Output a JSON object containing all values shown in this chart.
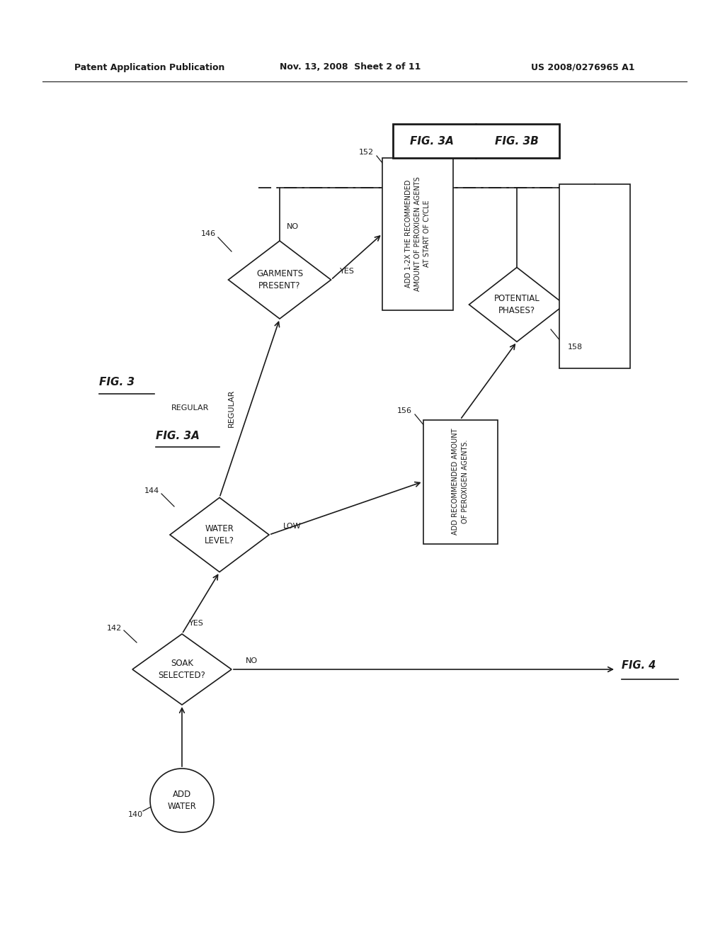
{
  "header_left": "Patent Application Publication",
  "header_mid": "Nov. 13, 2008  Sheet 2 of 11",
  "header_right": "US 2008/0276965 A1",
  "fig3_label": "FIG. 3",
  "fig3a_label": "FIG. 3A",
  "fig3b_label": "FIG. 3B",
  "node_140_text": "ADD\nWATER",
  "node_140_ref": "140",
  "node_142_text": "SOAK\nSELECTED?",
  "node_142_ref": "142",
  "node_144_text": "WATER\nLEVEL?",
  "node_144_ref": "144",
  "node_146_text": "GARMENTS\nPRESENT?",
  "node_146_ref": "146",
  "node_152_text": "ADD 1-2X THE RECOMMENDED\nAMOUNT OF PEROXIGEN AGENTS\nAT START OF CYCLE",
  "node_152_ref": "152",
  "node_156_text": "ADD RECOMMENDED AMOUNT\nOF PEROXIGEN AGENTS.",
  "node_156_ref": "156",
  "node_158_text": "POTENTIAL\nPHASES?",
  "node_158_ref": "158",
  "fig4_label": "FIG. 4",
  "label_yes": "YES",
  "label_no": "NO",
  "label_regular": "REGULAR",
  "label_low": "LOW",
  "bg_color": "#ffffff",
  "line_color": "#1a1a1a",
  "text_color": "#1a1a1a"
}
